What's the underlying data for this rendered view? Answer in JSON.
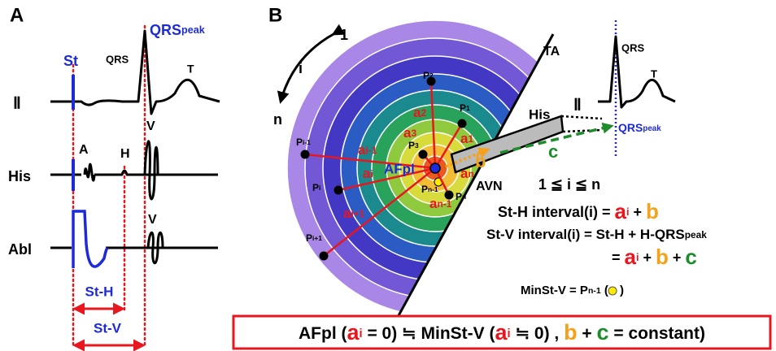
{
  "panel_a": {
    "label": "A",
    "lead_ii": "Ⅱ",
    "lead_his": "His",
    "lead_abl": "Abl",
    "st": "St",
    "qrs": "QRS",
    "qrs_peak": [
      "QRS",
      "peak"
    ],
    "t": "T",
    "his_a": "A",
    "his_h": "H",
    "his_v": "V",
    "abl_v": "V",
    "st_h": "St-H",
    "st_v": "St-V"
  },
  "panel_b": {
    "label": "B",
    "order": [
      "1",
      "i",
      "n"
    ],
    "ta": "TA",
    "points": [
      [
        "P",
        "2"
      ],
      [
        "P",
        "1"
      ],
      [
        "P",
        "3"
      ],
      [
        "P",
        "i-1"
      ],
      [
        "P",
        "i"
      ],
      [
        "P",
        "i+1"
      ],
      [
        "P",
        "n-1"
      ],
      [
        "P",
        "n"
      ]
    ],
    "distances": [
      [
        "a",
        "2"
      ],
      [
        "a",
        "1"
      ],
      [
        "a",
        "3"
      ],
      [
        "a",
        "i-1"
      ],
      [
        "a",
        "i"
      ],
      [
        "a",
        "i+1"
      ],
      [
        "a",
        "n-1"
      ],
      [
        "a",
        "n"
      ]
    ],
    "afpl": "AFpl",
    "avn": "AVN",
    "b": "b",
    "c": "c",
    "his": "His",
    "ecg": {
      "lead": "Ⅱ",
      "qrs": "QRS",
      "t": "T",
      "qrs_peak": [
        "QRS",
        "peak"
      ]
    },
    "equations": {
      "range": "1 ≦ i ≦ n",
      "st_h": [
        "St-H interval(i) = ",
        "a",
        "i",
        " + ",
        "b"
      ],
      "st_v": [
        "St-V interval(i) = St-H + H-QRS",
        "peak"
      ],
      "st_v_sum": [
        "= ",
        "a",
        "i",
        " + ",
        "b",
        " + ",
        "c"
      ],
      "min": [
        "MinSt-V = P",
        "n-1",
        " (",
        " )"
      ]
    },
    "conclusion": [
      "AFpl (",
      "a",
      "i",
      " = 0) ≒ MinSt-V (",
      "a",
      "i",
      " ≒ 0) , ",
      "b",
      " + ",
      "c",
      " = constant)"
    ]
  }
}
